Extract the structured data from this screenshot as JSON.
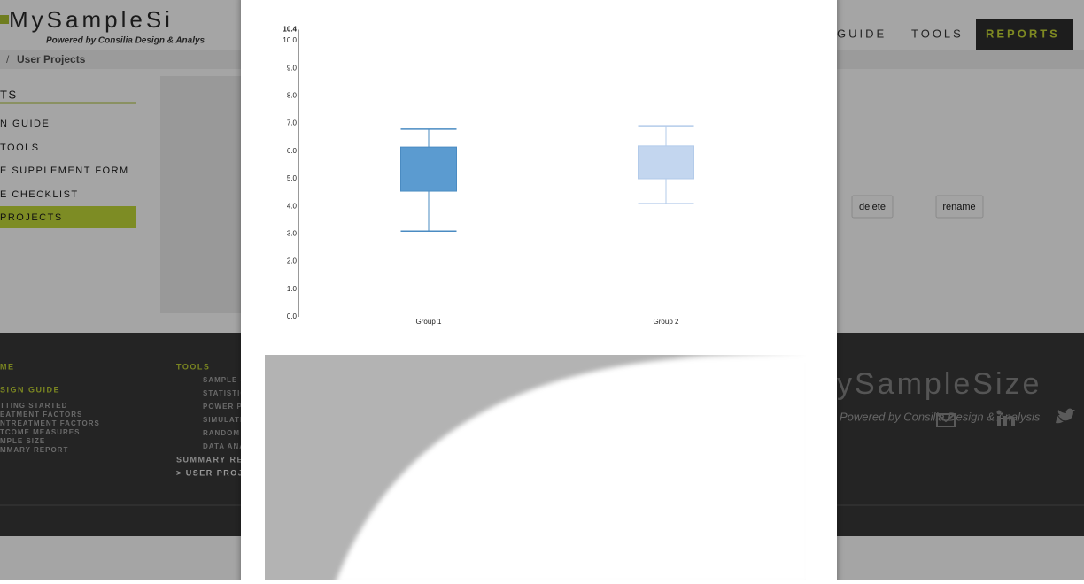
{
  "header": {
    "logo": "MySampleSi",
    "tagline": "Powered by Consilia Design & Analys",
    "nav": [
      "GUIDE",
      "TOOLS",
      "REPORTS"
    ]
  },
  "breadcrumb": {
    "separator": "/",
    "current": "User Projects"
  },
  "sidebar": {
    "heading": "TS",
    "items": [
      "N GUIDE",
      "TOOLS",
      "E SUPPLEMENT FORM",
      "E CHECKLIST",
      "PROJECTS"
    ]
  },
  "actions": [
    "delete",
    "rename"
  ],
  "footer": {
    "col1": {
      "heading": "ME",
      "subheading": "SIGN GUIDE",
      "links": [
        "TTING STARTED",
        "EATMENT FACTORS",
        "NTREATMENT FACTORS",
        "TCOME MEASURES",
        "MPLE SIZE",
        "MMARY REPORT"
      ]
    },
    "col2": {
      "heading": "TOOLS",
      "links": [
        "SAMPLE S",
        "STATISTIC",
        "POWER P",
        "SIMULATI",
        "RANDOM",
        "DATA ANA"
      ],
      "summary": "SUMMARY RE",
      "current": "> USER PROJ"
    },
    "brand": "ySampleSize",
    "tagline": "Powered by Consilia Design & Analysis"
  },
  "chart_data": {
    "type": "box",
    "categories": [
      "Group 1",
      "Group 2"
    ],
    "boxes": [
      {
        "whislo": 3.1,
        "q1": 4.55,
        "q3": 6.15,
        "whishi": 6.8,
        "color": "#5b9bd0",
        "edge": "#4a8bc2"
      },
      {
        "whislo": 4.1,
        "q1": 5.0,
        "q3": 6.19,
        "whishi": 6.92,
        "color": "#c3d6ef",
        "edge": "#b3cbea"
      }
    ],
    "ylim": [
      0,
      10.4
    ],
    "yticks": [
      {
        "value": 0,
        "label": "0.0"
      },
      {
        "value": 1,
        "label": "1.0"
      },
      {
        "value": 2,
        "label": "2.0"
      },
      {
        "value": 3,
        "label": "3.0"
      },
      {
        "value": 4,
        "label": "4.0"
      },
      {
        "value": 5,
        "label": "5.0"
      },
      {
        "value": 6,
        "label": "6.0"
      },
      {
        "value": 7,
        "label": "7.0"
      },
      {
        "value": 8,
        "label": "8.0"
      },
      {
        "value": 9,
        "label": "9.0"
      },
      {
        "value": 10,
        "label": "10.0"
      },
      10.4
    ]
  }
}
